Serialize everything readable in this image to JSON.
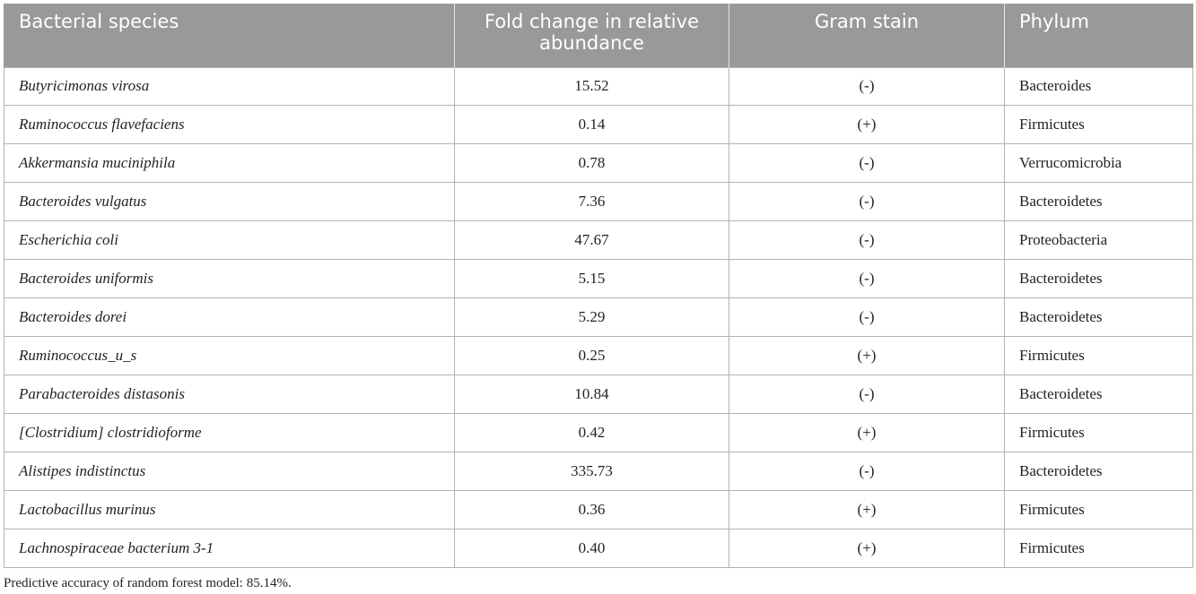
{
  "table": {
    "headers": [
      "Bacterial species",
      "Fold change in relative abundance",
      "Gram stain",
      "Phylum"
    ],
    "rows": [
      {
        "species": "Butyricimonas virosa",
        "fold_change": "15.52",
        "gram": "(-)",
        "phylum": "Bacteroides"
      },
      {
        "species": "Ruminococcus flavefaciens",
        "fold_change": "0.14",
        "gram": "(+)",
        "phylum": "Firmicutes"
      },
      {
        "species": "Akkermansia muciniphila",
        "fold_change": "0.78",
        "gram": "(-)",
        "phylum": "Verrucomicrobia"
      },
      {
        "species": "Bacteroides vulgatus",
        "fold_change": "7.36",
        "gram": "(-)",
        "phylum": "Bacteroidetes"
      },
      {
        "species": "Escherichia coli",
        "fold_change": "47.67",
        "gram": "(-)",
        "phylum": "Proteobacteria"
      },
      {
        "species": "Bacteroides uniformis",
        "fold_change": "5.15",
        "gram": "(-)",
        "phylum": "Bacteroidetes"
      },
      {
        "species": "Bacteroides dorei",
        "fold_change": "5.29",
        "gram": "(-)",
        "phylum": "Bacteroidetes"
      },
      {
        "species": "Ruminococcus_u_s",
        "fold_change": "0.25",
        "gram": "(+)",
        "phylum": "Firmicutes"
      },
      {
        "species": "Parabacteroides distasonis",
        "fold_change": "10.84",
        "gram": "(-)",
        "phylum": "Bacteroidetes"
      },
      {
        "species": "[Clostridium] clostridioforme",
        "fold_change": "0.42",
        "gram": "(+)",
        "phylum": "Firmicutes"
      },
      {
        "species": "Alistipes indistinctus",
        "fold_change": "335.73",
        "gram": "(-)",
        "phylum": "Bacteroidetes"
      },
      {
        "species": "Lactobacillus murinus",
        "fold_change": "0.36",
        "gram": "(+)",
        "phylum": "Firmicutes"
      },
      {
        "species": "Lachnospiraceae bacterium 3-1",
        "fold_change": "0.40",
        "gram": "(+)",
        "phylum": "Firmicutes"
      }
    ]
  },
  "footnote": "Predictive accuracy of random forest model: 85.14%.",
  "colors": {
    "header_background": "#999999",
    "header_text": "#ffffff",
    "border": "#b3b3b3"
  }
}
